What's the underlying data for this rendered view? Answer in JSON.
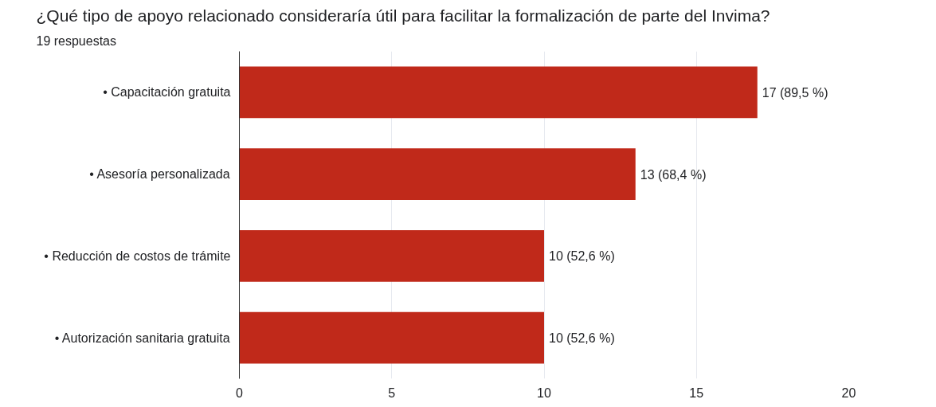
{
  "chart_data": {
    "type": "bar",
    "orientation": "horizontal",
    "title": "¿Qué tipo de apoyo relacionado consideraría útil para facilitar la formalización de parte del Invima?",
    "subtitle": "19 respuestas",
    "categories": [
      "• Capacitación gratuita",
      "• Asesoría personalizada",
      "• Reducción de costos de trámite",
      "• Autorización sanitaria gratuita"
    ],
    "values": [
      17,
      13,
      10,
      10
    ],
    "color": "#c0291a",
    "value_labels": [
      "17 (89,5 %)",
      "13 (68,4 %)",
      "10 (52,6 %)",
      "10 (52,6 %)"
    ],
    "xlim": [
      0,
      20
    ],
    "xticks": [
      0,
      5,
      10,
      15,
      20
    ],
    "grid": "x"
  }
}
